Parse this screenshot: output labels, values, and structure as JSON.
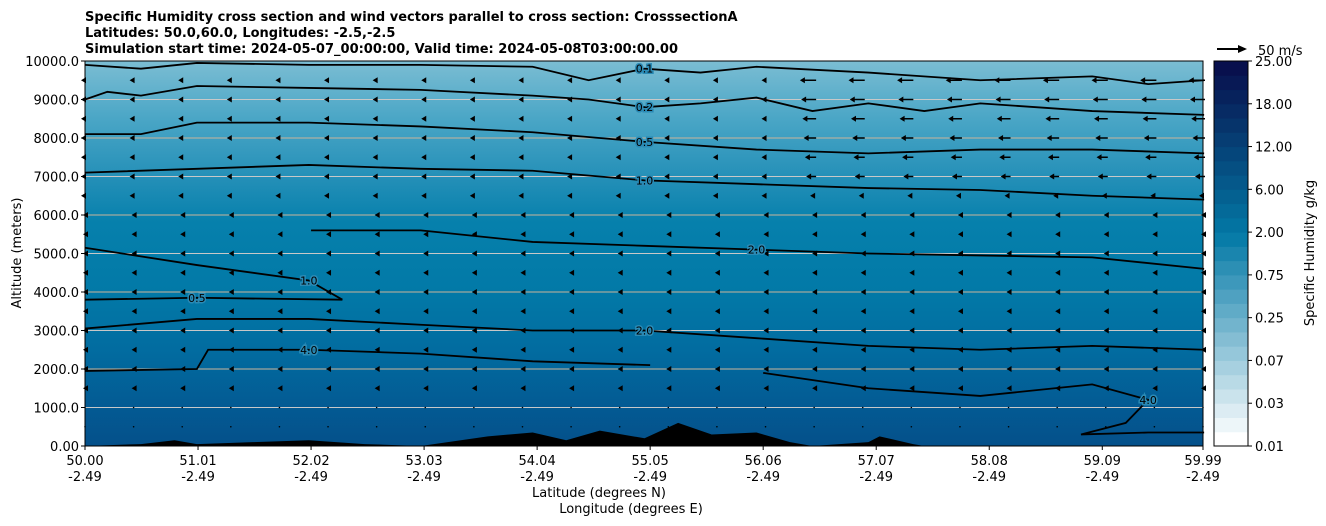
{
  "chart_data": {
    "type": "contour",
    "title": [
      "Specific Humidity cross section and wind vectors parallel to cross section: CrosssectionA",
      "Latitudes: 50.0,60.0, Longitudes: -2.5,-2.5",
      "Simulation start time: 2024-05-07_00:00:00, Valid time: 2024-05-08T03:00:00.00"
    ],
    "xlabel": "Latitude (degrees N)",
    "xlabel2": "Longitude (degrees E)",
    "ylabel": "Altitude (meters)",
    "xlim": [
      50.0,
      59.99
    ],
    "ylim": [
      0,
      10000
    ],
    "x_ticks": [
      {
        "lat": "50.00",
        "lon": "-2.49",
        "v": 50.0
      },
      {
        "lat": "51.01",
        "lon": "-2.49",
        "v": 51.01
      },
      {
        "lat": "52.02",
        "lon": "-2.49",
        "v": 52.02
      },
      {
        "lat": "53.03",
        "lon": "-2.49",
        "v": 53.03
      },
      {
        "lat": "54.04",
        "lon": "-2.49",
        "v": 54.04
      },
      {
        "lat": "55.05",
        "lon": "-2.49",
        "v": 55.05
      },
      {
        "lat": "56.06",
        "lon": "-2.49",
        "v": 56.06
      },
      {
        "lat": "57.07",
        "lon": "-2.49",
        "v": 57.07
      },
      {
        "lat": "58.08",
        "lon": "-2.49",
        "v": 58.08
      },
      {
        "lat": "59.09",
        "lon": "-2.49",
        "v": 59.09
      },
      {
        "lat": "59.99",
        "lon": "-2.49",
        "v": 59.99
      }
    ],
    "y_ticks": [
      "0.00",
      "1000.0",
      "2000.0",
      "3000.0",
      "4000.0",
      "5000.0",
      "6000.0",
      "7000.0",
      "8000.0",
      "9000.0",
      "10000.0"
    ],
    "colorbar": {
      "label": "Specific Humidity g/kg",
      "ticks": [
        "0.01",
        "0.03",
        "0.07",
        "0.25",
        "0.75",
        "2.00",
        "6.00",
        "12.00",
        "18.00",
        "25.00"
      ],
      "light": "#ffffff",
      "mid": "#0379a6",
      "dark": "#08104d"
    },
    "quiver_key": "50 m/s",
    "contours": [
      {
        "label": "0.1",
        "x": [
          50,
          50.5,
          51,
          52,
          53,
          54,
          54.5,
          55,
          55.5,
          56,
          57,
          58,
          59,
          59.5,
          60
        ],
        "y": [
          9900,
          9800,
          9950,
          9900,
          9900,
          9850,
          9500,
          9800,
          9700,
          9850,
          9700,
          9500,
          9600,
          9400,
          9500
        ]
      },
      {
        "label": "0.2",
        "x": [
          50,
          50.2,
          50.5,
          51,
          52,
          53,
          54,
          54.5,
          55,
          55.5,
          56,
          56.5,
          57,
          57.5,
          58,
          59,
          60
        ],
        "y": [
          9000,
          9200,
          9100,
          9350,
          9300,
          9250,
          9100,
          9000,
          8800,
          8900,
          9050,
          8700,
          8900,
          8700,
          8900,
          8700,
          8600
        ]
      },
      {
        "label": "0.5",
        "x": [
          50,
          50.5,
          51,
          52,
          53,
          54,
          55,
          56,
          57,
          58,
          59,
          60
        ],
        "y": [
          8100,
          8100,
          8400,
          8400,
          8300,
          8150,
          7900,
          7700,
          7600,
          7700,
          7700,
          7600
        ]
      },
      {
        "label": "1.0",
        "x": [
          50,
          51,
          52,
          53,
          54,
          55,
          56,
          57,
          58,
          59,
          60
        ],
        "y": [
          7100,
          7200,
          7300,
          7200,
          7150,
          6900,
          6800,
          6700,
          6650,
          6500,
          6400
        ]
      },
      {
        "label": "2.0",
        "x": [
          52.02,
          53,
          54,
          55,
          56,
          57,
          58,
          59,
          60
        ],
        "y": [
          5600,
          5600,
          5300,
          5200,
          5100,
          5000,
          4950,
          4900,
          4600
        ]
      },
      {
        "label": "1.0",
        "x": [
          50,
          51,
          52,
          52.3
        ],
        "y": [
          5150,
          4700,
          4300,
          3800
        ]
      },
      {
        "label": "0.5",
        "x": [
          50,
          51,
          52.3
        ],
        "y": [
          3800,
          3850,
          3800
        ]
      },
      {
        "label": "2.0",
        "x": [
          50,
          51,
          52,
          53,
          54,
          55,
          56,
          57,
          58,
          59,
          60
        ],
        "y": [
          3050,
          3300,
          3300,
          3150,
          3000,
          3000,
          2800,
          2600,
          2500,
          2600,
          2500
        ]
      },
      {
        "label": "4.0",
        "x": [
          50,
          51,
          51.1,
          52,
          53,
          54,
          55.05
        ],
        "y": [
          1950,
          2000,
          2500,
          2500,
          2400,
          2200,
          2100
        ]
      },
      {
        "label": "4.0",
        "x": [
          56.06,
          57,
          58,
          59,
          59.5,
          59.3,
          58.9,
          59.5,
          60
        ],
        "y": [
          1900,
          1500,
          1300,
          1600,
          1200,
          600,
          300,
          350,
          350
        ]
      }
    ],
    "terrain": {
      "x": [
        50,
        50.5,
        50.8,
        51,
        51.5,
        52,
        52.5,
        53,
        53.6,
        54,
        54.3,
        54.6,
        55.0,
        55.3,
        55.6,
        56,
        56.3,
        56.5,
        57,
        57.1,
        57.4,
        57.5,
        60
      ],
      "y": [
        0,
        50,
        150,
        50,
        100,
        150,
        50,
        0,
        250,
        350,
        150,
        400,
        200,
        600,
        300,
        350,
        100,
        0,
        100,
        250,
        50,
        0,
        0
      ]
    },
    "wind_u_right_top": "strong easterly components above 7000 m north of 56.5"
  }
}
